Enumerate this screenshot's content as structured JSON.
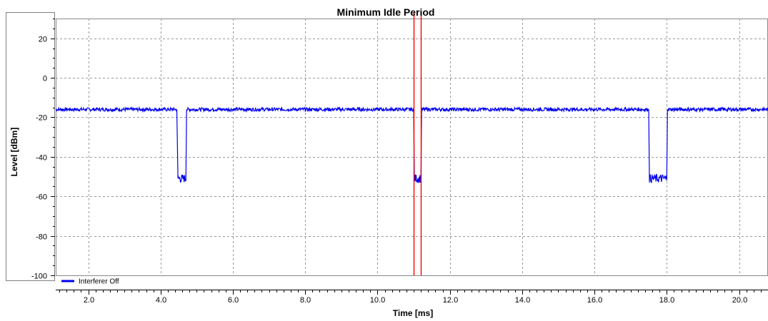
{
  "chart_data": {
    "type": "line",
    "title": "Minimum Idle Period",
    "xlabel": "Time [ms]",
    "ylabel": "Level [dBm]",
    "xlim": [
      1.1,
      20.8
    ],
    "ylim": [
      -100,
      30
    ],
    "x_ticks": [
      "2.0",
      "4.0",
      "6.0",
      "8.0",
      "10.0",
      "12.0",
      "14.0",
      "16.0",
      "18.0",
      "20.0"
    ],
    "y_ticks": [
      "20",
      "0",
      "-20",
      "-40",
      "-60",
      "-80",
      "-100"
    ],
    "grid": true,
    "legend_position": "bottom-left",
    "series": [
      {
        "name": "Interferer Off",
        "color": "#0000ee",
        "points": [
          [
            1.1,
            -16
          ],
          [
            4.45,
            -16
          ],
          [
            4.48,
            -51
          ],
          [
            4.7,
            -51
          ],
          [
            4.72,
            -16
          ],
          [
            11.0,
            -16
          ],
          [
            11.02,
            -51
          ],
          [
            11.2,
            -51
          ],
          [
            11.22,
            -16
          ],
          [
            17.5,
            -16
          ],
          [
            17.52,
            -51
          ],
          [
            18.0,
            -51
          ],
          [
            18.02,
            -16
          ],
          [
            20.8,
            -16
          ]
        ]
      }
    ],
    "markers": [
      {
        "x": 11.0,
        "color": "#ff0000"
      },
      {
        "x": 11.2,
        "color": "#ff0000"
      }
    ]
  }
}
